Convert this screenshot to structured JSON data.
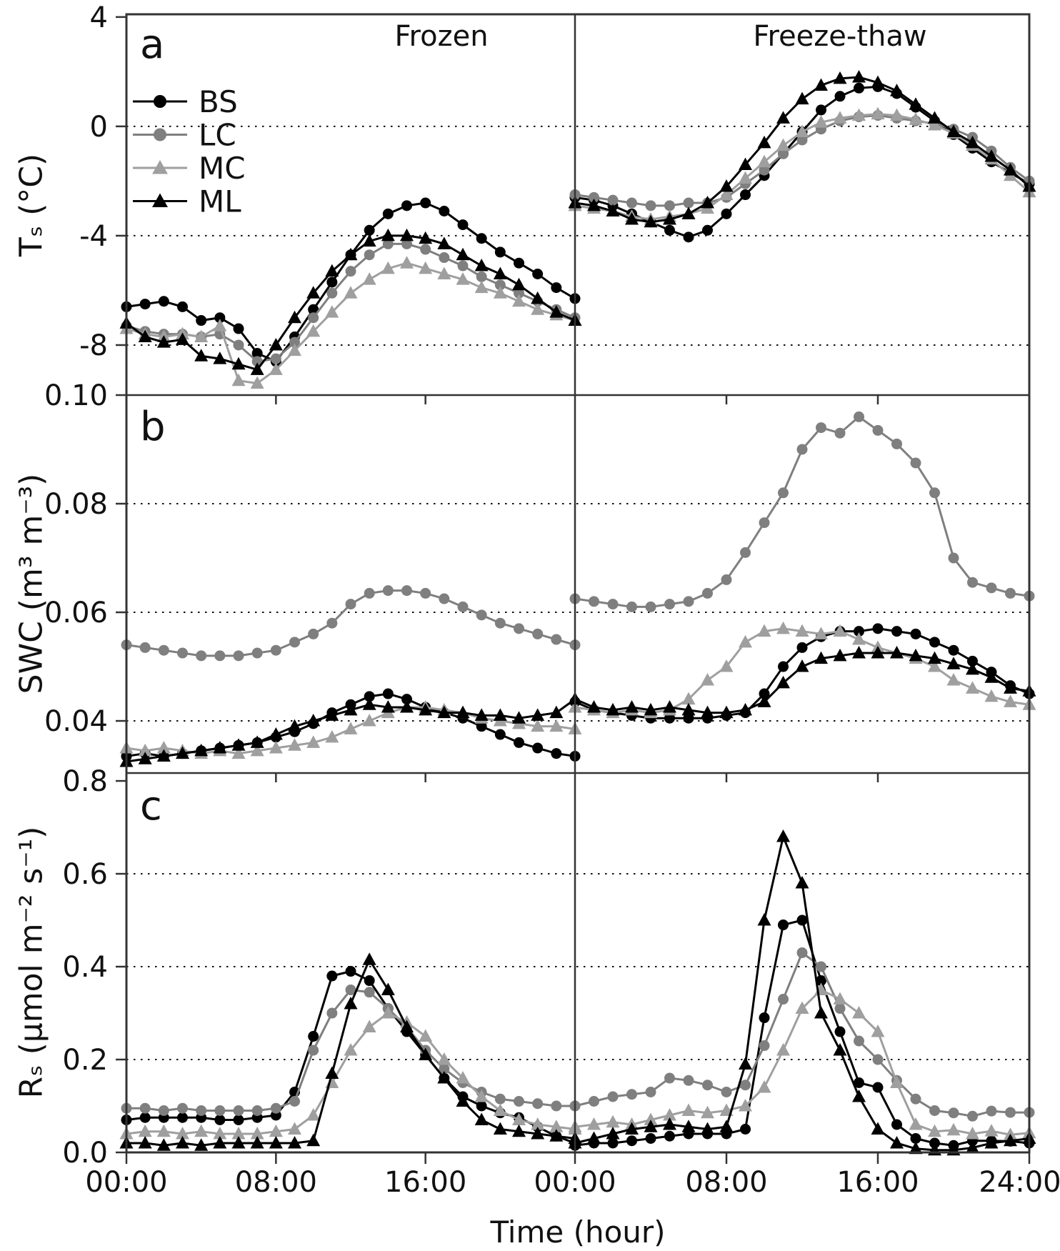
{
  "figure": {
    "panel_letters": [
      "a",
      "b",
      "c"
    ],
    "column_titles": [
      "Frozen",
      "Freeze-thaw"
    ],
    "y_axis_labels": [
      "Tₛ (°C)",
      "SWC (m³ m⁻³)",
      "Rₛ (μmol m⁻² s⁻¹)"
    ],
    "x_axis_label": "Time (hour)"
  },
  "legend": {
    "position": "top-left-panel-a",
    "items": [
      {
        "label": "BS",
        "marker": "circle",
        "color": "#000000"
      },
      {
        "label": "LC",
        "marker": "circle",
        "color": "#7f7f7f"
      },
      {
        "label": "MC",
        "marker": "triangle",
        "color": "#9f9f9f"
      },
      {
        "label": "ML",
        "marker": "triangle",
        "color": "#000000"
      }
    ]
  },
  "axes": {
    "hours": [
      0,
      1,
      2,
      3,
      4,
      5,
      6,
      7,
      8,
      9,
      10,
      11,
      12,
      13,
      14,
      15,
      16,
      17,
      18,
      19,
      20,
      21,
      22,
      23,
      24
    ],
    "x_ticks": [
      {
        "label": "00:00",
        "global_hour": 0
      },
      {
        "label": "08:00",
        "global_hour": 8
      },
      {
        "label": "16:00",
        "global_hour": 16
      },
      {
        "label": "00:00",
        "global_hour": 24
      },
      {
        "label": "08:00",
        "global_hour": 32
      },
      {
        "label": "16:00",
        "global_hour": 40
      },
      {
        "label": "24:00",
        "global_hour": 48
      }
    ],
    "rows": [
      {
        "id": "a",
        "ylim": [
          -9.83,
          4.1
        ],
        "grid": [
          0,
          -4,
          -8
        ],
        "ticks": [
          {
            "label": "4",
            "value": 4
          },
          {
            "label": "0",
            "value": 0
          },
          {
            "label": "-4",
            "value": -4
          },
          {
            "label": "-8",
            "value": -8
          }
        ]
      },
      {
        "id": "b",
        "ylim": [
          0.0304,
          0.1
        ],
        "grid": [
          0.08,
          0.06,
          0.04
        ],
        "ticks": [
          {
            "label": "0.10",
            "value": 0.1
          },
          {
            "label": "0.08",
            "value": 0.08
          },
          {
            "label": "0.06",
            "value": 0.06
          },
          {
            "label": "0.04",
            "value": 0.04
          }
        ]
      },
      {
        "id": "c",
        "ylim": [
          0,
          0.817
        ],
        "grid": [
          0.6,
          0.4,
          0.2
        ],
        "ticks": [
          {
            "label": "0.8",
            "value": 0.8
          },
          {
            "label": "0.6",
            "value": 0.6
          },
          {
            "label": "0.4",
            "value": 0.4
          },
          {
            "label": "0.2",
            "value": 0.2
          },
          {
            "label": "0.0",
            "value": 0.0
          }
        ]
      }
    ]
  },
  "chart_data": [
    {
      "type": "line",
      "panel": "a",
      "row": "a",
      "column": 0,
      "title": "Frozen",
      "ylabel": "Ts (degC)",
      "xlabel": "Time (hour)",
      "ylim": [
        -9.83,
        4.1
      ],
      "series": [
        {
          "name": "BS",
          "marker": "circle",
          "color": "#000000",
          "values": [
            -6.6,
            -6.5,
            -6.4,
            -6.6,
            -7.1,
            -7.0,
            -7.4,
            -8.3,
            -8.6,
            -7.7,
            -6.7,
            -5.7,
            -4.7,
            -3.8,
            -3.2,
            -2.9,
            -2.8,
            -3.1,
            -3.6,
            -4.1,
            -4.6,
            -5.0,
            -5.4,
            -5.9,
            -6.3
          ]
        },
        {
          "name": "LC",
          "marker": "circle",
          "color": "#7f7f7f",
          "values": [
            -7.3,
            -7.5,
            -7.6,
            -7.6,
            -7.7,
            -7.6,
            -8.0,
            -8.6,
            -8.5,
            -7.9,
            -7.0,
            -6.1,
            -5.3,
            -4.7,
            -4.3,
            -4.3,
            -4.5,
            -4.8,
            -5.1,
            -5.5,
            -5.8,
            -6.1,
            -6.4,
            -6.7,
            -7.0
          ]
        },
        {
          "name": "MC",
          "marker": "triangle",
          "color": "#9f9f9f",
          "values": [
            -7.4,
            -7.6,
            -7.7,
            -7.6,
            -7.7,
            -7.3,
            -9.3,
            -9.4,
            -8.9,
            -8.2,
            -7.5,
            -6.8,
            -6.1,
            -5.6,
            -5.2,
            -5.0,
            -5.2,
            -5.4,
            -5.6,
            -5.9,
            -6.1,
            -6.4,
            -6.7,
            -6.9,
            -7.1
          ]
        },
        {
          "name": "ML",
          "marker": "triangle",
          "color": "#000000",
          "values": [
            -7.2,
            -7.7,
            -7.9,
            -7.8,
            -8.4,
            -8.5,
            -8.7,
            -8.9,
            -8.0,
            -7.0,
            -6.1,
            -5.3,
            -4.7,
            -4.2,
            -4.0,
            -4.0,
            -4.1,
            -4.3,
            -4.7,
            -5.1,
            -5.4,
            -5.8,
            -6.3,
            -6.8,
            -7.1
          ]
        }
      ]
    },
    {
      "type": "line",
      "panel": "a",
      "row": "a",
      "column": 1,
      "title": "Freeze-thaw",
      "ylabel": "Ts (degC)",
      "xlabel": "Time (hour)",
      "ylim": [
        -9.83,
        4.1
      ],
      "series": [
        {
          "name": "BS",
          "marker": "circle",
          "color": "#000000",
          "values": [
            -2.6,
            -2.7,
            -2.9,
            -3.2,
            -3.5,
            -3.8,
            -4.05,
            -3.8,
            -3.2,
            -2.5,
            -1.8,
            -1.0,
            -0.2,
            0.6,
            1.1,
            1.4,
            1.45,
            1.2,
            0.7,
            0.2,
            -0.3,
            -0.8,
            -1.3,
            -1.7,
            -2.1
          ]
        },
        {
          "name": "LC",
          "marker": "circle",
          "color": "#7f7f7f",
          "values": [
            -2.5,
            -2.6,
            -2.7,
            -2.8,
            -2.9,
            -2.9,
            -2.8,
            -2.8,
            -2.6,
            -2.1,
            -1.6,
            -1.0,
            -0.5,
            -0.1,
            0.2,
            0.35,
            0.4,
            0.3,
            0.2,
            0.1,
            -0.1,
            -0.4,
            -0.9,
            -1.5,
            -2.0
          ]
        },
        {
          "name": "MC",
          "marker": "triangle",
          "color": "#9f9f9f",
          "values": [
            -2.9,
            -3.0,
            -3.1,
            -3.3,
            -3.4,
            -3.3,
            -3.2,
            -3.0,
            -2.5,
            -1.9,
            -1.3,
            -0.7,
            -0.2,
            0.15,
            0.3,
            0.4,
            0.45,
            0.4,
            0.25,
            0.05,
            -0.25,
            -0.7,
            -1.2,
            -1.8,
            -2.4
          ]
        },
        {
          "name": "ML",
          "marker": "triangle",
          "color": "#000000",
          "values": [
            -2.8,
            -2.9,
            -3.1,
            -3.4,
            -3.5,
            -3.4,
            -3.2,
            -2.8,
            -2.2,
            -1.4,
            -0.6,
            0.3,
            1.0,
            1.5,
            1.75,
            1.8,
            1.6,
            1.3,
            0.8,
            0.3,
            -0.2,
            -0.6,
            -1.1,
            -1.6,
            -2.2
          ]
        }
      ]
    },
    {
      "type": "line",
      "panel": "b",
      "row": "b",
      "column": 0,
      "title": "Frozen",
      "ylabel": "SWC (m3 m-3)",
      "xlabel": "Time (hour)",
      "ylim": [
        0.0304,
        0.1
      ],
      "series": [
        {
          "name": "BS",
          "marker": "circle",
          "color": "#000000",
          "values": [
            0.0335,
            0.034,
            0.0335,
            0.034,
            0.0345,
            0.035,
            0.0355,
            0.036,
            0.037,
            0.038,
            0.0395,
            0.0415,
            0.043,
            0.0445,
            0.045,
            0.044,
            0.0425,
            0.0415,
            0.0405,
            0.039,
            0.0375,
            0.036,
            0.035,
            0.034,
            0.0335
          ]
        },
        {
          "name": "LC",
          "marker": "circle",
          "color": "#7f7f7f",
          "values": [
            0.054,
            0.0535,
            0.053,
            0.0525,
            0.052,
            0.052,
            0.052,
            0.0525,
            0.053,
            0.0545,
            0.056,
            0.058,
            0.0615,
            0.0635,
            0.064,
            0.064,
            0.0635,
            0.0625,
            0.061,
            0.0595,
            0.058,
            0.057,
            0.056,
            0.055,
            0.054
          ]
        },
        {
          "name": "MC",
          "marker": "triangle",
          "color": "#9f9f9f",
          "values": [
            0.035,
            0.0345,
            0.035,
            0.0345,
            0.034,
            0.0345,
            0.034,
            0.0345,
            0.035,
            0.0355,
            0.036,
            0.037,
            0.0385,
            0.04,
            0.0415,
            0.0425,
            0.0425,
            0.042,
            0.0415,
            0.0405,
            0.04,
            0.0395,
            0.039,
            0.039,
            0.0385
          ]
        },
        {
          "name": "ML",
          "marker": "triangle",
          "color": "#000000",
          "values": [
            0.0325,
            0.033,
            0.0335,
            0.034,
            0.0345,
            0.035,
            0.0355,
            0.036,
            0.0375,
            0.039,
            0.04,
            0.041,
            0.042,
            0.043,
            0.0425,
            0.0425,
            0.042,
            0.0415,
            0.0415,
            0.041,
            0.041,
            0.0405,
            0.041,
            0.0415,
            0.044
          ]
        }
      ]
    },
    {
      "type": "line",
      "panel": "b",
      "row": "b",
      "column": 1,
      "title": "Freeze-thaw",
      "ylabel": "SWC (m3 m-3)",
      "xlabel": "Time (hour)",
      "ylim": [
        0.0304,
        0.1
      ],
      "series": [
        {
          "name": "BS",
          "marker": "circle",
          "color": "#000000",
          "values": [
            0.0435,
            0.042,
            0.0415,
            0.041,
            0.0405,
            0.0405,
            0.0405,
            0.0405,
            0.041,
            0.0415,
            0.045,
            0.05,
            0.0535,
            0.0555,
            0.0565,
            0.0565,
            0.057,
            0.0565,
            0.056,
            0.0545,
            0.053,
            0.051,
            0.049,
            0.0465,
            0.045
          ]
        },
        {
          "name": "LC",
          "marker": "circle",
          "color": "#7f7f7f",
          "values": [
            0.0625,
            0.062,
            0.0615,
            0.061,
            0.061,
            0.0615,
            0.062,
            0.0635,
            0.066,
            0.071,
            0.0765,
            0.082,
            0.09,
            0.094,
            0.093,
            0.096,
            0.0935,
            0.091,
            0.0875,
            0.082,
            0.07,
            0.0655,
            0.0645,
            0.0635,
            0.063
          ]
        },
        {
          "name": "MC",
          "marker": "triangle",
          "color": "#9f9f9f",
          "values": [
            0.0425,
            0.042,
            0.0415,
            0.042,
            0.0415,
            0.042,
            0.044,
            0.0475,
            0.05,
            0.0545,
            0.0565,
            0.057,
            0.0565,
            0.056,
            0.0565,
            0.055,
            0.0535,
            0.0525,
            0.0515,
            0.05,
            0.0475,
            0.046,
            0.0445,
            0.0435,
            0.043
          ]
        },
        {
          "name": "ML",
          "marker": "triangle",
          "color": "#000000",
          "values": [
            0.044,
            0.0425,
            0.042,
            0.0425,
            0.042,
            0.0425,
            0.042,
            0.0415,
            0.0415,
            0.042,
            0.0435,
            0.047,
            0.05,
            0.0515,
            0.052,
            0.0525,
            0.0525,
            0.0525,
            0.052,
            0.0515,
            0.0505,
            0.0495,
            0.048,
            0.046,
            0.0455
          ]
        }
      ]
    },
    {
      "type": "line",
      "panel": "c",
      "row": "c",
      "column": 0,
      "title": "Frozen",
      "ylabel": "Rs (umol m-2 s-1)",
      "xlabel": "Time (hour)",
      "ylim": [
        0,
        0.817
      ],
      "series": [
        {
          "name": "BS",
          "marker": "circle",
          "color": "#000000",
          "values": [
            0.07,
            0.075,
            0.075,
            0.075,
            0.075,
            0.07,
            0.07,
            0.075,
            0.08,
            0.13,
            0.25,
            0.38,
            0.39,
            0.37,
            0.31,
            0.26,
            0.21,
            0.16,
            0.12,
            0.1,
            0.085,
            0.075,
            0.055,
            0.035,
            0.02
          ]
        },
        {
          "name": "LC",
          "marker": "circle",
          "color": "#7f7f7f",
          "values": [
            0.095,
            0.095,
            0.09,
            0.095,
            0.09,
            0.09,
            0.09,
            0.09,
            0.095,
            0.11,
            0.22,
            0.3,
            0.35,
            0.345,
            0.31,
            0.27,
            0.22,
            0.18,
            0.15,
            0.13,
            0.115,
            0.11,
            0.105,
            0.1,
            0.1
          ]
        },
        {
          "name": "MC",
          "marker": "triangle",
          "color": "#9f9f9f",
          "values": [
            0.04,
            0.045,
            0.045,
            0.04,
            0.045,
            0.04,
            0.04,
            0.04,
            0.045,
            0.05,
            0.08,
            0.15,
            0.22,
            0.27,
            0.3,
            0.28,
            0.25,
            0.2,
            0.16,
            0.12,
            0.09,
            0.07,
            0.06,
            0.055,
            0.05
          ]
        },
        {
          "name": "ML",
          "marker": "triangle",
          "color": "#000000",
          "values": [
            0.02,
            0.02,
            0.015,
            0.02,
            0.015,
            0.02,
            0.02,
            0.02,
            0.02,
            0.02,
            0.025,
            0.17,
            0.32,
            0.415,
            0.35,
            0.27,
            0.21,
            0.16,
            0.11,
            0.07,
            0.05,
            0.045,
            0.04,
            0.035,
            0.03
          ]
        }
      ]
    },
    {
      "type": "line",
      "panel": "c",
      "row": "c",
      "column": 1,
      "title": "Freeze-thaw",
      "ylabel": "Rs (umol m-2 s-1)",
      "xlabel": "Time (hour)",
      "ylim": [
        0,
        0.817
      ],
      "series": [
        {
          "name": "BS",
          "marker": "circle",
          "color": "#000000",
          "values": [
            0.015,
            0.02,
            0.02,
            0.025,
            0.03,
            0.035,
            0.04,
            0.04,
            0.04,
            0.05,
            0.29,
            0.49,
            0.5,
            0.37,
            0.26,
            0.15,
            0.14,
            0.06,
            0.03,
            0.02,
            0.015,
            0.025,
            0.025,
            0.024,
            0.02
          ]
        },
        {
          "name": "LC",
          "marker": "circle",
          "color": "#7f7f7f",
          "values": [
            0.1,
            0.11,
            0.12,
            0.125,
            0.13,
            0.16,
            0.155,
            0.145,
            0.13,
            0.145,
            0.23,
            0.33,
            0.43,
            0.4,
            0.31,
            0.24,
            0.2,
            0.155,
            0.115,
            0.09,
            0.085,
            0.078,
            0.089,
            0.086,
            0.086
          ]
        },
        {
          "name": "MC",
          "marker": "triangle",
          "color": "#9f9f9f",
          "values": [
            0.055,
            0.06,
            0.065,
            0.06,
            0.07,
            0.08,
            0.09,
            0.085,
            0.09,
            0.1,
            0.14,
            0.22,
            0.31,
            0.35,
            0.33,
            0.3,
            0.26,
            0.15,
            0.06,
            0.045,
            0.048,
            0.04,
            0.046,
            0.038,
            0.042
          ]
        },
        {
          "name": "ML",
          "marker": "triangle",
          "color": "#000000",
          "values": [
            0.02,
            0.03,
            0.04,
            0.05,
            0.055,
            0.06,
            0.055,
            0.05,
            0.055,
            0.19,
            0.5,
            0.68,
            0.58,
            0.3,
            0.22,
            0.12,
            0.05,
            0.02,
            0.008,
            0.005,
            0.005,
            0.01,
            0.02,
            0.025,
            0.03
          ]
        }
      ]
    }
  ]
}
